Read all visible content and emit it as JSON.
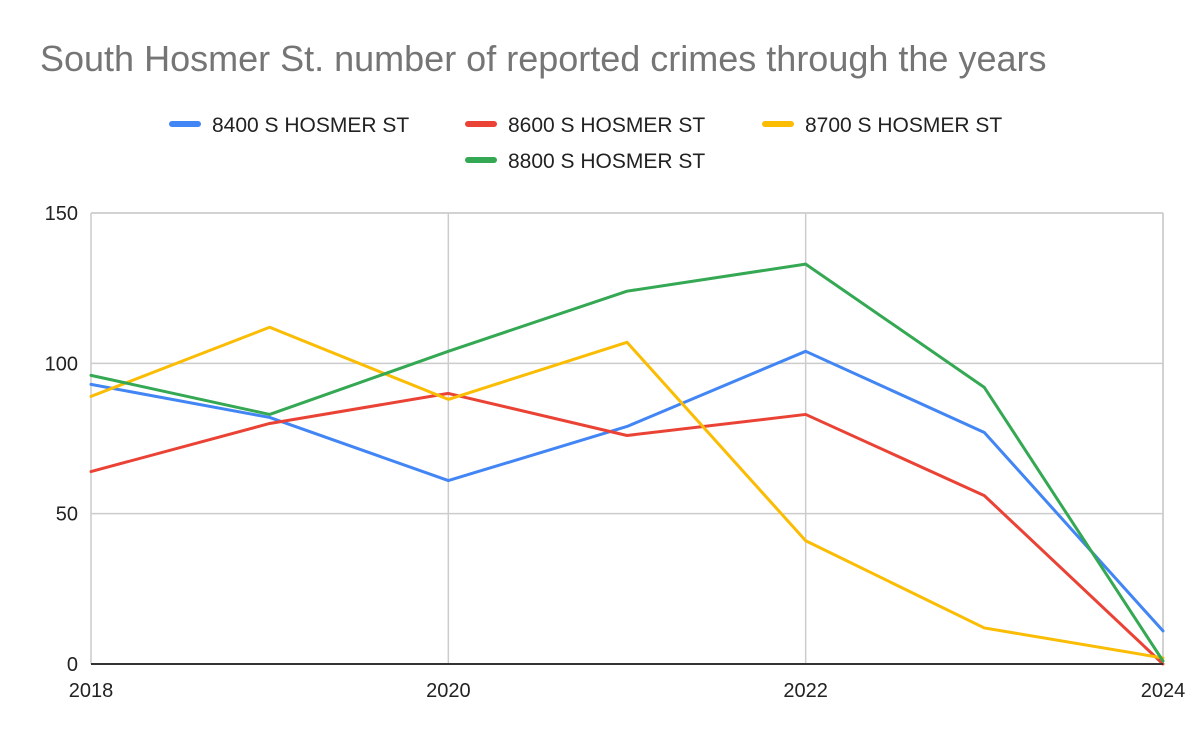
{
  "chart_data": {
    "type": "line",
    "title": "South Hosmer St. number of reported crimes through the years",
    "x": [
      2018,
      2019,
      2020,
      2021,
      2022,
      2023,
      2024
    ],
    "x_ticks": [
      "2018",
      "2020",
      "2022",
      "2024"
    ],
    "y_ticks": [
      "0",
      "50",
      "100",
      "150"
    ],
    "xlim": [
      2018,
      2024
    ],
    "ylim": [
      0,
      150
    ],
    "grid": true,
    "legend_position": "top",
    "series": [
      {
        "name": "8400 S HOSMER ST",
        "color": "#4285f4",
        "values": [
          93,
          82,
          61,
          79,
          104,
          77,
          11
        ]
      },
      {
        "name": "8600 S HOSMER ST",
        "color": "#ea4335",
        "values": [
          64,
          80,
          90,
          76,
          83,
          56,
          0
        ]
      },
      {
        "name": "8700 S HOSMER ST",
        "color": "#fbbc04",
        "values": [
          89,
          112,
          88,
          107,
          41,
          12,
          2
        ]
      },
      {
        "name": "8800 S HOSMER ST",
        "color": "#34a853",
        "values": [
          96,
          83,
          104,
          124,
          133,
          92,
          1
        ]
      }
    ]
  }
}
